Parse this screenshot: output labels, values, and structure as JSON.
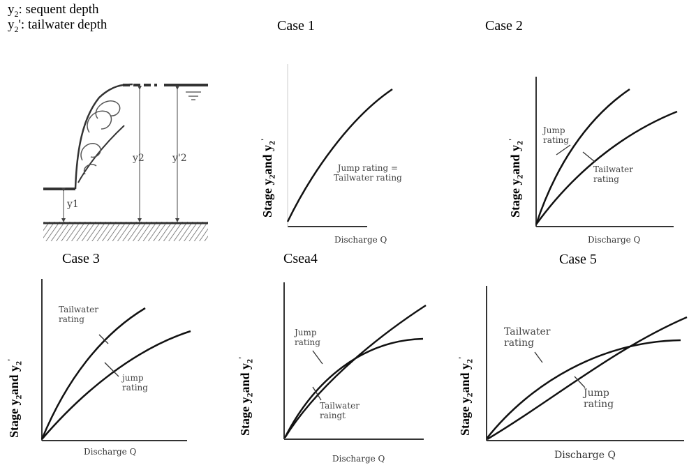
{
  "legend": {
    "y2_sym": "y",
    "y2_sub": "2",
    "y2_text": ": sequent depth",
    "y2p_sym": "y",
    "y2p_sub": "2",
    "y2p_text": "': tailwater depth"
  },
  "case_titles": [
    "Case 1",
    "Case 2",
    "Case 3",
    "Csea4",
    "Case 5"
  ],
  "axis": {
    "ylabel_main": "Stage y",
    "ylabel_sub1": "2",
    "ylabel_mid": "and y",
    "ylabel_sub2": "2",
    "ylabel_prime": "'",
    "xlabel": "Discharge Q"
  },
  "sketch": {
    "y1": "y1",
    "y2": "y2",
    "y2p": "y'2"
  },
  "case1": {
    "label_line1": "Jump rating =",
    "label_line2": "Tailwater rating"
  },
  "case2": {
    "jump_line1": "Jump",
    "jump_line2": "rating",
    "tail_line1": "Tailwater",
    "tail_line2": "rating"
  },
  "case3": {
    "tail_line1": "Tailwater",
    "tail_line2": "rating",
    "jump_line1": "jump",
    "jump_line2": "rating"
  },
  "case4": {
    "jump_line1": "Jump",
    "jump_line2": "rating",
    "tail_line1": "Tailwater",
    "tail_line2": "raingt"
  },
  "case5": {
    "tail_line1": "Tailwater",
    "tail_line2": "rating",
    "jump_line1": "Jump",
    "jump_line2": "rating"
  }
}
